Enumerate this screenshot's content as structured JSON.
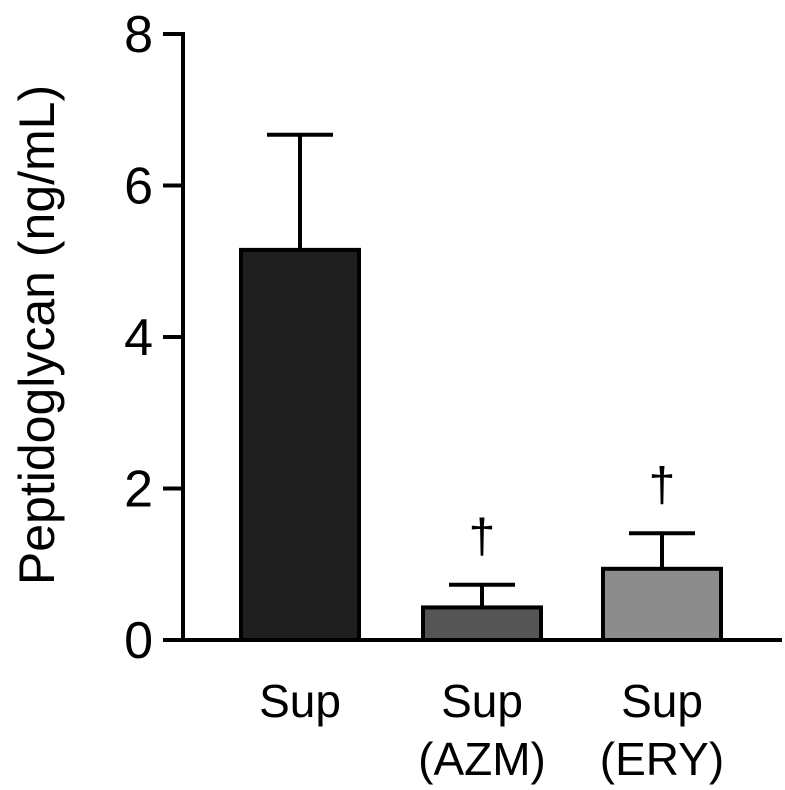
{
  "chart_data": {
    "type": "bar",
    "title": "",
    "xlabel": "",
    "ylabel": "Peptidoglycan (ng/mL)",
    "ylim": [
      0,
      8
    ],
    "yticks": [
      0,
      2,
      4,
      6,
      8
    ],
    "grid": false,
    "legend": "none",
    "categories": [
      [
        "Sup"
      ],
      [
        "Sup",
        "(AZM)"
      ],
      [
        "Sup",
        "(ERY)"
      ]
    ],
    "values": [
      5.15,
      0.43,
      0.94
    ],
    "errors": [
      1.52,
      0.3,
      0.47
    ],
    "annotations": [
      "",
      "†",
      "†"
    ],
    "colors": [
      "#1f1f1f",
      "#555555",
      "#8c8c8c"
    ]
  }
}
